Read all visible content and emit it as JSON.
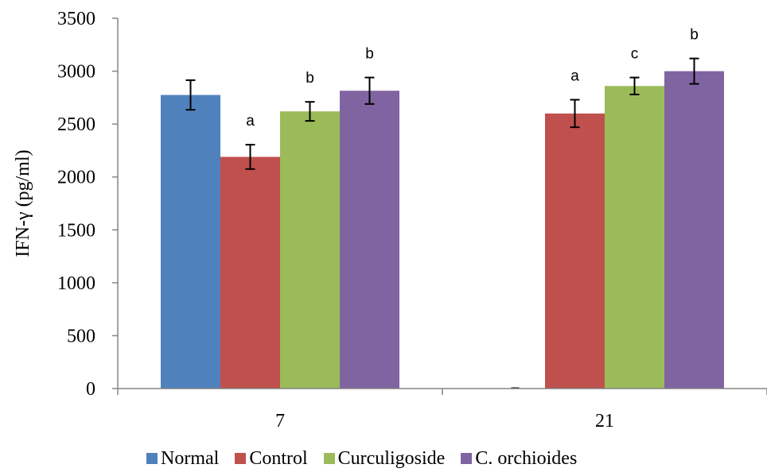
{
  "chart_data": {
    "type": "bar",
    "title": "",
    "xlabel": "",
    "ylabel": "IFN-γ (pg/ml)",
    "categories": [
      "7",
      "21"
    ],
    "ylim": [
      0,
      3500
    ],
    "yticks": [
      0,
      500,
      1000,
      1500,
      2000,
      2500,
      3000,
      3500
    ],
    "grid": false,
    "legend_position": "bottom",
    "series": [
      {
        "name": "Normal",
        "color": "#4F81BD",
        "values": [
          2775,
          0
        ],
        "errors": [
          140,
          0
        ],
        "labels": [
          "",
          ""
        ]
      },
      {
        "name": "Control",
        "color": "#C0504D",
        "values": [
          2190,
          2600
        ],
        "errors": [
          115,
          130
        ],
        "labels": [
          "a",
          "a"
        ]
      },
      {
        "name": "Curculigoside",
        "color": "#9BBB59",
        "values": [
          2620,
          2860
        ],
        "errors": [
          90,
          80
        ],
        "labels": [
          "b",
          "c"
        ]
      },
      {
        "name": "C. orchioides",
        "color": "#8064A2",
        "values": [
          2815,
          3000
        ],
        "errors": [
          125,
          120
        ],
        "labels": [
          "b",
          "b"
        ]
      }
    ]
  }
}
